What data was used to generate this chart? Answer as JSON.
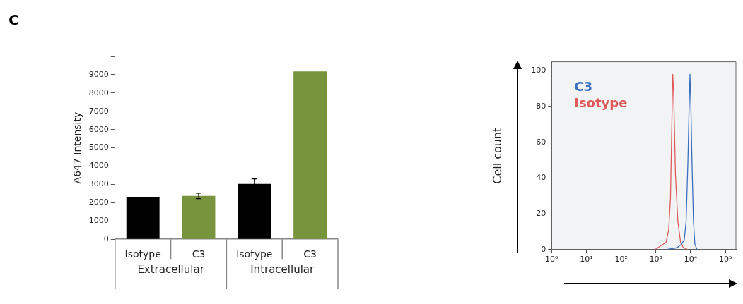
{
  "chart_data": [
    {
      "type": "bar",
      "ylabel": "A647 Intensity",
      "categories": [
        "Isotype",
        "C3",
        "Isotype",
        "C3"
      ],
      "values": [
        2320,
        2370,
        3030,
        9180
      ],
      "colors": [
        "#000000",
        "#77933c",
        "#000000",
        "#77933c"
      ],
      "errors": [
        null,
        150,
        270,
        null
      ],
      "ylim": [
        0,
        10000
      ],
      "yticks": [
        0,
        1000,
        2000,
        3000,
        4000,
        5000,
        6000,
        7000,
        8000,
        9000,
        {
          "value": 10000,
          "label": null
        }
      ],
      "grid": false,
      "annotations": [
        "C",
        "Extracellular",
        "Intracellular"
      ]
    },
    {
      "type": "line",
      "ylabel": "Cell count",
      "log": "x",
      "grid": false,
      "legend": "top left",
      "marker": "none",
      "line_style": "solid",
      "xlim": [
        1,
        200000
      ],
      "xticks": [
        {
          "value": 1,
          "label": "10⁰"
        },
        {
          "value": 10,
          "label": "10¹"
        },
        {
          "value": 100,
          "label": "10²"
        },
        {
          "value": 1000,
          "label": "10³"
        },
        {
          "value": 10000,
          "label": "10⁴"
        },
        {
          "value": 100000,
          "label": "10⁵"
        }
      ],
      "ylim": [
        0,
        105
      ],
      "yticks": [
        0,
        20,
        40,
        60,
        80,
        100
      ],
      "series": [
        {
          "name": "C3",
          "color": "#3a6fc0",
          "x": [
            1950,
            4040,
            5450,
            6540,
            7400,
            8320,
            8900,
            9550,
            10100,
            10900,
            12000,
            13200,
            15200
          ],
          "values": [
            0,
            1,
            3,
            5.5,
            16,
            49,
            75,
            98,
            82,
            49,
            16,
            3,
            0
          ]
        },
        {
          "name": "Isotype",
          "color": "#e05a5a",
          "x": [
            940,
            1200,
            1620,
            1950,
            2330,
            2630,
            2870,
            3050,
            3240,
            3650,
            4270,
            5130,
            6160,
            8320
          ],
          "values": [
            0,
            1.3,
            3,
            4,
            11,
            29,
            69,
            98,
            88,
            42,
            16,
            4,
            1,
            0
          ]
        }
      ]
    }
  ]
}
